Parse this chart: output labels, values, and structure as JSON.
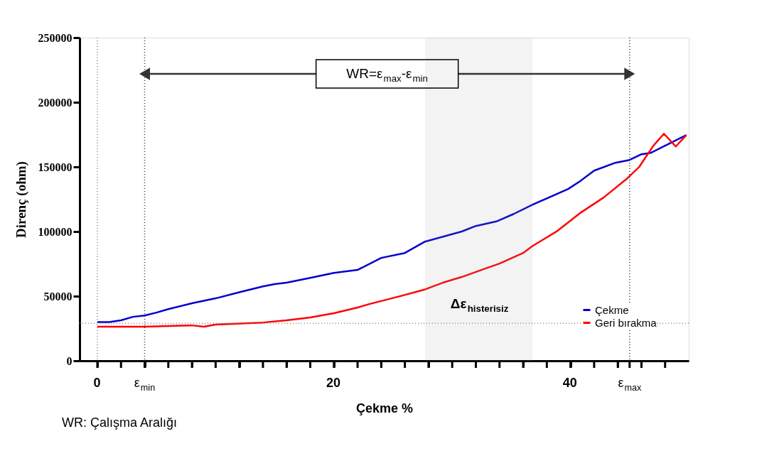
{
  "chart_data": {
    "type": "line",
    "xlabel": "Çekme %",
    "ylabel": "Direnç (ohm)",
    "xlim": [
      -1.5,
      50
    ],
    "ylim": [
      0,
      250000
    ],
    "xticks": [
      0,
      {
        "value": 2,
        "label": null
      },
      {
        "value": 4,
        "label": "ε$_{min}$"
      },
      {
        "value": 6,
        "label": null
      },
      {
        "value": 8,
        "label": null
      },
      {
        "value": 10,
        "label": null
      },
      {
        "value": 12,
        "label": null
      },
      {
        "value": 14,
        "label": null
      },
      {
        "value": 16,
        "label": null
      },
      {
        "value": 18,
        "label": null
      },
      20,
      {
        "value": 22,
        "label": null
      },
      {
        "value": 24,
        "label": null
      },
      {
        "value": 26,
        "label": null
      },
      {
        "value": 28,
        "label": null
      },
      {
        "value": 30,
        "label": null
      },
      {
        "value": 32,
        "label": null
      },
      {
        "value": 34,
        "label": null
      },
      {
        "value": 36,
        "label": null
      },
      {
        "value": 38,
        "label": null
      },
      40,
      {
        "value": 42,
        "label": null
      },
      {
        "value": 44,
        "label": null
      },
      {
        "value": 45,
        "label": "ε$_{max}$"
      },
      {
        "value": 46,
        "label": null
      },
      {
        "value": 48,
        "label": null
      }
    ],
    "yticks": [
      0,
      50000,
      100000,
      150000,
      200000,
      250000
    ],
    "series": [
      {
        "name": "Çekme",
        "color": "#0000cc",
        "x": [
          0,
          1,
          2,
          3,
          4,
          5,
          6,
          8,
          10,
          12,
          14,
          15,
          16,
          18,
          20,
          22,
          24,
          26,
          27.7,
          30.8,
          32,
          33.8,
          35.2,
          36.8,
          39.8,
          40.8,
          42,
          43.8,
          45,
          46,
          46.8,
          49.8
        ],
        "values": [
          30000,
          30000,
          31300,
          34000,
          35000,
          37300,
          40000,
          44500,
          48300,
          53000,
          57600,
          59300,
          60400,
          64200,
          68000,
          70300,
          79600,
          83400,
          92200,
          100000,
          104300,
          108000,
          113600,
          120800,
          132900,
          138900,
          147100,
          153200,
          155400,
          159800,
          160900,
          174600
        ]
      },
      {
        "name": "Geri bırakma",
        "color": "#ff0000",
        "x": [
          0,
          4,
          8,
          9,
          10,
          14,
          16,
          18,
          20,
          22,
          23,
          25.8,
          27.6,
          29.2,
          30.8,
          32.8,
          34,
          36,
          36.8,
          38.8,
          40.8,
          42.8,
          44.8,
          45.8,
          47,
          47.9,
          48.9,
          49.8
        ],
        "values": [
          26400,
          26400,
          27400,
          26400,
          28000,
          29600,
          31300,
          33500,
          36800,
          41200,
          43900,
          50500,
          54900,
          60400,
          64800,
          71400,
          75200,
          83400,
          88900,
          99900,
          114200,
          126300,
          141100,
          149900,
          166300,
          175700,
          165800,
          174600
        ]
      }
    ],
    "ref_lines": [
      {
        "axis": "x",
        "value": 0,
        "label": null,
        "color": "#888888",
        "line_style": "dotted"
      },
      {
        "axis": "x",
        "value": 4,
        "label": null,
        "color": "#333333",
        "line_style": "dotted"
      },
      {
        "axis": "x",
        "value": 45,
        "label": null,
        "color": "#333333",
        "line_style": "dotted"
      },
      {
        "axis": "y",
        "value": 29000,
        "label": null,
        "color": "#888888",
        "line_style": "dotted"
      }
    ],
    "bands": [
      {
        "axis": "x",
        "from": 27.7,
        "to": 36.8,
        "label": null,
        "color": "#999999"
      }
    ],
    "annotations": [
      "WR=ε$_{max}$-ε$_{min}$",
      "Δε$_{histerisiz}$",
      "WR: Çalışma Aralığı"
    ],
    "legend": "bottom right",
    "grid": false,
    "marker": "none",
    "line_style": "solid"
  }
}
